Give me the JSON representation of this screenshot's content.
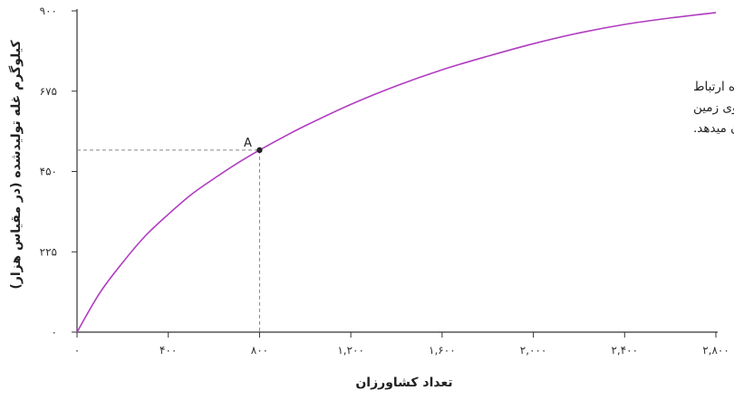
{
  "chart_data": {
    "type": "line",
    "xlabel": "تعداد کشاورزان",
    "ylabel": "کیلوگرم غله تولیدشده (در مقیاس هزار)",
    "xlim": [
      0,
      2800
    ],
    "ylim": [
      0,
      900
    ],
    "x_ticks": [
      0,
      400,
      800,
      1200,
      1600,
      2000,
      2400,
      2800
    ],
    "x_tick_labels": [
      "۰",
      "۴۰۰",
      "۸۰۰",
      "۱,۲۰۰",
      "۱,۶۰۰",
      "۲,۰۰۰",
      "۲,۴۰۰",
      "۲,۸۰۰"
    ],
    "y_ticks": [
      0,
      225,
      450,
      675,
      900
    ],
    "y_tick_labels": [
      "۰",
      "۲۲۵",
      "۴۵۰",
      "۶۷۵",
      "۹۰۰"
    ],
    "grid": false,
    "colors": {
      "curve": "#b03cc0",
      "axis": "#333333",
      "guide": "#888888",
      "point": "#222222"
    },
    "series": [
      {
        "x": [
          0,
          100,
          200,
          300,
          400,
          500,
          600,
          700,
          800,
          900,
          1000,
          1200,
          1400,
          1600,
          1800,
          2000,
          2200,
          2400,
          2600,
          2800
        ],
        "y": [
          0,
          110,
          195,
          270,
          330,
          385,
          430,
          472,
          510,
          545,
          578,
          638,
          690,
          735,
          773,
          808,
          838,
          862,
          880,
          895
        ]
      }
    ],
    "point": {
      "label": "A",
      "x": 800,
      "y": 510
    },
    "annotation_lines": [
      "تابع تولید کشاورز: این آماره نحوه ارتباط",
      "تعداد کشاورزان مشغول به کار روی زمین",
      "به میزان غله برداشتی را نشان میدهد."
    ]
  }
}
